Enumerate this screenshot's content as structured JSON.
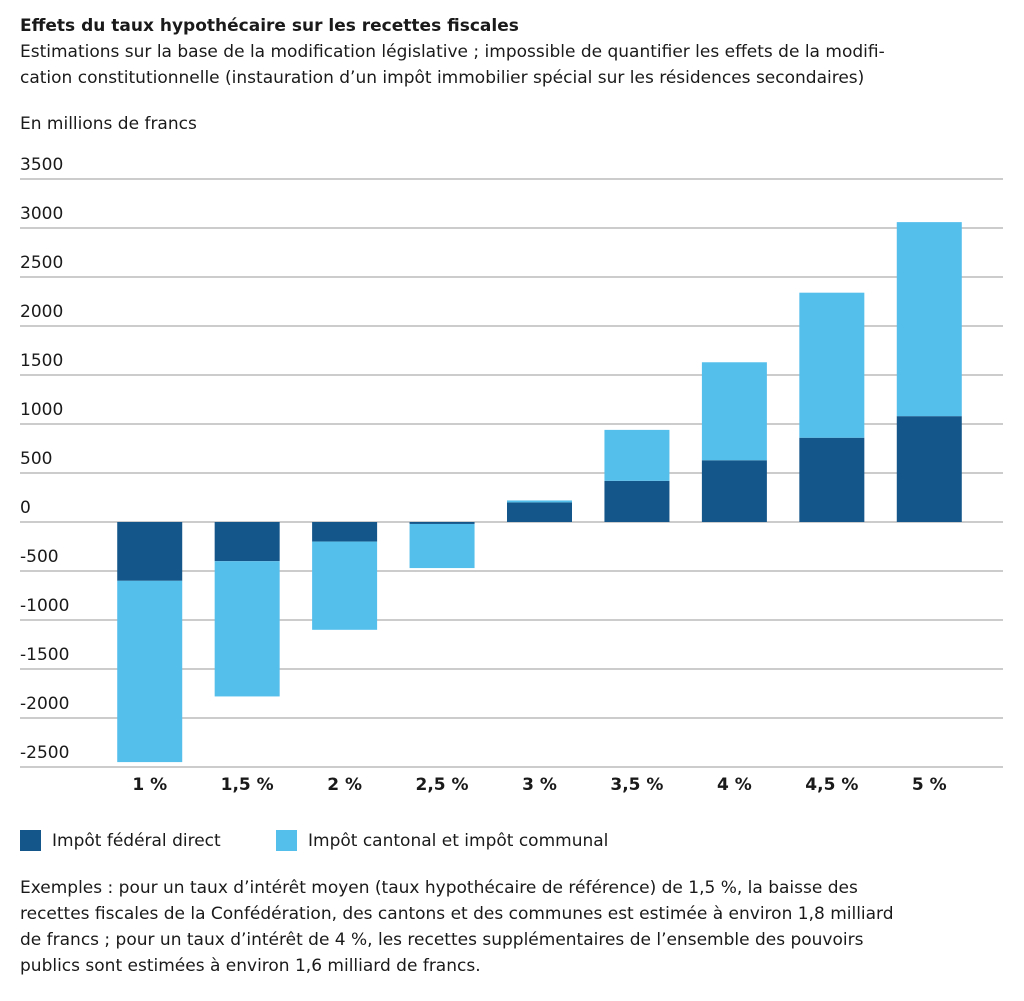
{
  "chart_data": {
    "type": "bar",
    "stacked": true,
    "title": "Effets du taux hypothécaire sur les recettes fiscales",
    "subtitle": [
      "Estimations sur la base de la modification législative ; impossible de quantifier les effets de la modifi-",
      "cation constitutionnelle (instauration d’un impôt immobilier spécial sur les résidences secondaires)"
    ],
    "y_label": "En millions de francs",
    "categories": [
      "1 %",
      "1,5 %",
      "2 %",
      "2,5 %",
      "3 %",
      "3,5 %",
      "4 %",
      "4,5 %",
      "5 %"
    ],
    "series": [
      {
        "name": "Impôt fédéral direct",
        "color": "#14568a",
        "values": [
          -600,
          -400,
          -200,
          -20,
          200,
          420,
          630,
          860,
          1080
        ]
      },
      {
        "name": "Impôt cantonal et impôt communal",
        "color": "#55bfec",
        "values": [
          -1850,
          -1380,
          -900,
          -450,
          20,
          520,
          1000,
          1480,
          1980
        ]
      }
    ],
    "ylim": [
      -2500,
      3500
    ],
    "yticks": [
      -2500,
      -2000,
      -1500,
      -1000,
      -500,
      0,
      500,
      1000,
      1500,
      2000,
      2500,
      3000,
      3500
    ],
    "grid": true,
    "footnote": [
      "Exemples : pour un taux d’intérêt moyen (taux hypothécaire de référence) de 1,5 %, la baisse des",
      "recettes fiscales de la Confédération, des cantons et des communes est estimée à environ 1,8 milliard",
      "de francs ; pour un taux d’intérêt de 4 %, les recettes supplémentaires de l’ensemble des pouvoirs",
      "publics sont estimées à environ 1,6 milliard de francs."
    ]
  }
}
